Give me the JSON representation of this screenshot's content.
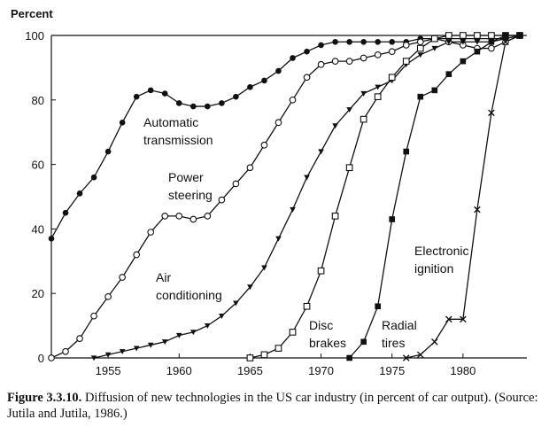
{
  "chart_data": {
    "type": "line",
    "ylabel": "Percent",
    "xlabel": "",
    "xlim": [
      1951,
      1984.5
    ],
    "ylim": [
      0,
      100
    ],
    "xticks": [
      1955,
      1960,
      1965,
      1970,
      1975,
      1980
    ],
    "yticks": [
      0,
      20,
      40,
      60,
      80,
      100
    ],
    "grid": false,
    "series": [
      {
        "name": "Automatic transmission",
        "label_lines": [
          "Automatic",
          "transmission"
        ],
        "marker": "filled-circle",
        "x": [
          1951,
          1952,
          1953,
          1954,
          1955,
          1956,
          1957,
          1958,
          1959,
          1960,
          1961,
          1962,
          1963,
          1964,
          1965,
          1966,
          1967,
          1968,
          1969,
          1970,
          1971,
          1972,
          1973,
          1974,
          1975,
          1976,
          1977,
          1978,
          1979,
          1980,
          1981,
          1982,
          1983,
          1984
        ],
        "y": [
          37,
          45,
          51,
          56,
          64,
          73,
          81,
          83,
          82,
          79,
          78,
          78,
          79,
          81,
          84,
          86,
          89,
          93,
          95,
          97,
          98,
          98,
          98,
          98,
          98,
          98,
          99,
          99,
          99,
          99,
          99,
          99,
          99,
          100
        ]
      },
      {
        "name": "Power steering",
        "label_lines": [
          "Power",
          "steering"
        ],
        "marker": "open-circle",
        "x": [
          1951,
          1952,
          1953,
          1954,
          1955,
          1956,
          1957,
          1958,
          1959,
          1960,
          1961,
          1962,
          1963,
          1964,
          1965,
          1966,
          1967,
          1968,
          1969,
          1970,
          1971,
          1972,
          1973,
          1974,
          1975,
          1976,
          1977,
          1978,
          1979,
          1980,
          1981,
          1982,
          1983,
          1984
        ],
        "y": [
          0,
          2,
          6,
          13,
          19,
          25,
          32,
          39,
          44,
          44,
          43,
          44,
          49,
          54,
          59,
          66,
          73,
          80,
          87,
          91,
          92,
          92,
          93,
          94,
          95,
          97,
          98,
          99,
          98,
          97,
          96,
          96,
          98,
          100
        ]
      },
      {
        "name": "Air conditioning",
        "label_lines": [
          "Air",
          "conditioning"
        ],
        "marker": "filled-triangle",
        "x": [
          1954,
          1955,
          1956,
          1957,
          1958,
          1959,
          1960,
          1961,
          1962,
          1963,
          1964,
          1965,
          1966,
          1967,
          1968,
          1969,
          1970,
          1971,
          1972,
          1973,
          1974,
          1975,
          1976,
          1977,
          1978,
          1979,
          1980,
          1981,
          1982,
          1983,
          1984
        ],
        "y": [
          0,
          1,
          2,
          3,
          4,
          5,
          7,
          8,
          10,
          13,
          17,
          22,
          28,
          37,
          46,
          56,
          64,
          72,
          77,
          82,
          84,
          86,
          91,
          94,
          96,
          98,
          98,
          98,
          98,
          99,
          100
        ]
      },
      {
        "name": "Disc brakes",
        "label_lines": [
          "Disc",
          "brakes"
        ],
        "marker": "open-square",
        "x": [
          1965,
          1966,
          1967,
          1968,
          1969,
          1970,
          1971,
          1972,
          1973,
          1974,
          1975,
          1976,
          1977,
          1978,
          1979,
          1980,
          1981,
          1982,
          1983,
          1984
        ],
        "y": [
          0,
          1,
          3,
          8,
          16,
          27,
          44,
          59,
          74,
          81,
          87,
          92,
          96,
          99,
          100,
          100,
          100,
          100,
          100,
          100
        ]
      },
      {
        "name": "Radial tires",
        "label_lines": [
          "Radial",
          "tires"
        ],
        "marker": "filled-square",
        "x": [
          1972,
          1973,
          1974,
          1975,
          1976,
          1977,
          1978,
          1979,
          1980,
          1981,
          1982,
          1983,
          1984
        ],
        "y": [
          0,
          5,
          16,
          43,
          64,
          81,
          83,
          88,
          92,
          95,
          98,
          100,
          100
        ]
      },
      {
        "name": "Electronic ignition",
        "label_lines": [
          "Electronic",
          "ignition"
        ],
        "marker": "cross",
        "x": [
          1976,
          1977,
          1978,
          1979,
          1980,
          1981,
          1982,
          1983,
          1984
        ],
        "y": [
          0,
          1,
          5,
          12,
          12,
          46,
          76,
          98,
          100
        ]
      }
    ]
  },
  "caption": {
    "figure_label": "Figure 3.3.10.",
    "text": "Diffusion of new technologies in the US car industry (in percent of car output). (Source: Jutila and Jutila, 1986.)"
  }
}
